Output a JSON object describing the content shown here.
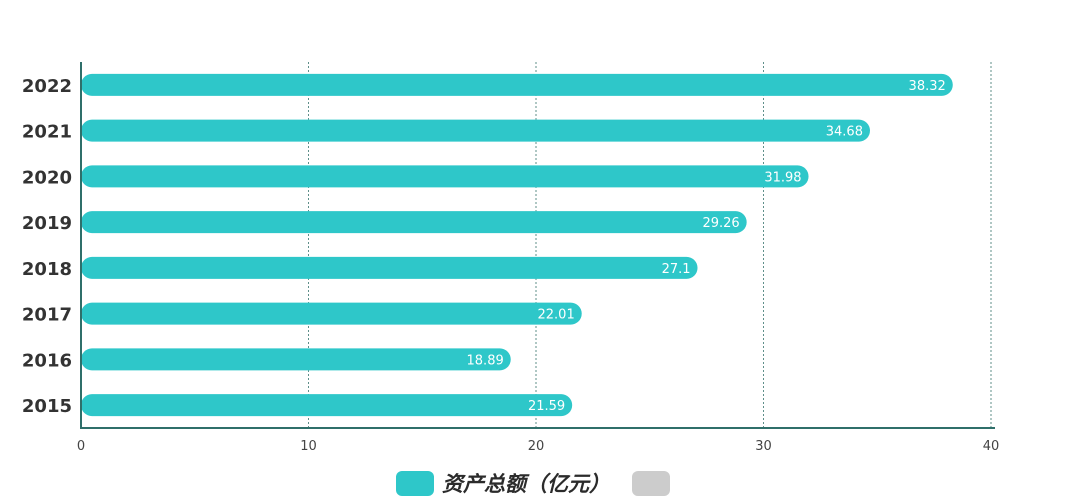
{
  "chart_data": {
    "type": "bar",
    "orientation": "horizontal",
    "categories": [
      "2022",
      "2021",
      "2020",
      "2019",
      "2018",
      "2017",
      "2016",
      "2015"
    ],
    "series": [
      {
        "name": "资产总额（亿元）",
        "color": "#2ec7c9",
        "values": [
          38.32,
          34.68,
          31.98,
          29.26,
          27.1,
          22.01,
          18.89,
          21.59
        ],
        "labels": [
          "38.32",
          "34.68",
          "31.98",
          "29.26",
          "27.1",
          "22.01",
          "18.89",
          "21.59"
        ]
      }
    ],
    "xlim": [
      0,
      40
    ],
    "xticks": [
      "0",
      "10",
      "20",
      "30",
      "40"
    ],
    "grid": "vertical dotted",
    "legend_position": "bottom"
  },
  "legend": {
    "items": [
      {
        "label": "资产总额（亿元）",
        "color": "#2ec7c9"
      },
      {
        "label": "",
        "color": "#cccccc"
      }
    ]
  },
  "colors": {
    "axis": "#2f6f6a",
    "grid": "#5f8f8a",
    "bar_label": "#ffffff",
    "category_text": "#333333",
    "tick_text": "#444444"
  }
}
